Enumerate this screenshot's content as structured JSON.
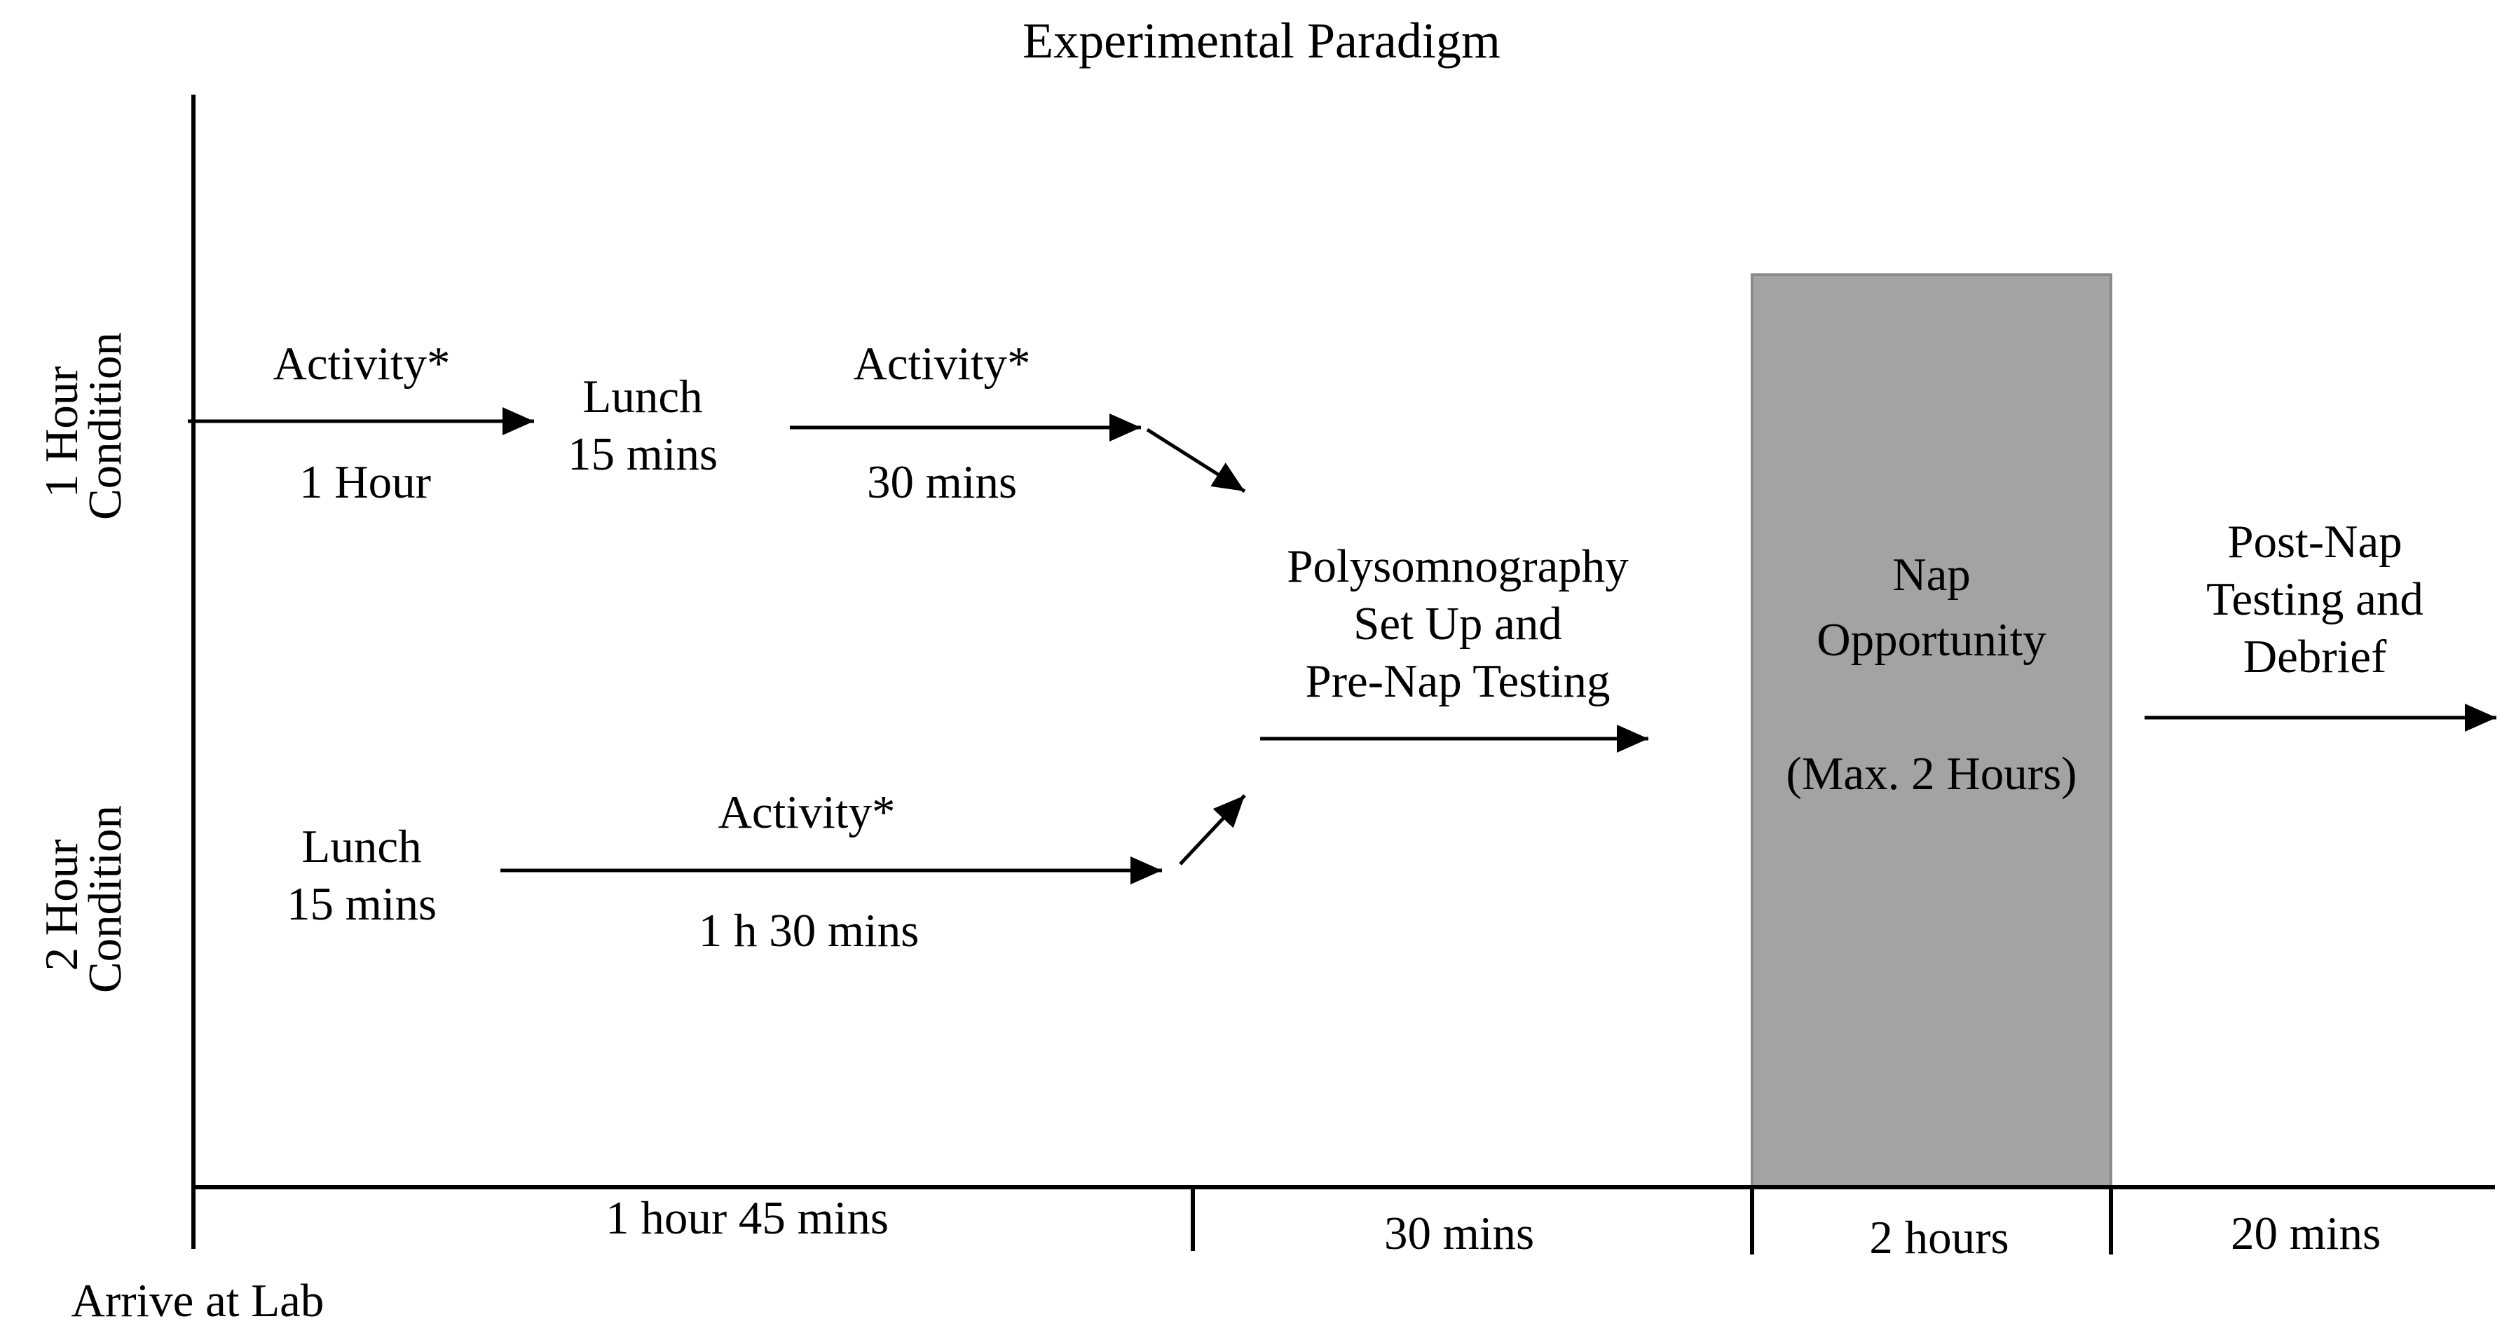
{
  "title": "Experimental Paradigm",
  "conditions": {
    "one_hour": "1 Hour\nCondition",
    "two_hour": "2 Hour\nCondition"
  },
  "one_hour_steps": {
    "activity1_label": "Activity*",
    "activity1_duration": "1 Hour",
    "lunch_label": "Lunch",
    "lunch_duration": "15 mins",
    "activity2_label": "Activity*",
    "activity2_duration": "30 mins"
  },
  "two_hour_steps": {
    "lunch_label": "Lunch",
    "lunch_duration": "15 mins",
    "activity_label": "Activity*",
    "activity_duration": "1 h 30 mins"
  },
  "polysomnography": {
    "line1": "Polysomnography",
    "line2": "Set Up and",
    "line3": "Pre-Nap Testing"
  },
  "nap": {
    "line1": "Nap",
    "line2": "Opportunity",
    "line3": "(Max. 2 Hours)",
    "fill_color": "#a3a3a3"
  },
  "post_nap": {
    "line1": "Post-Nap",
    "line2": "Testing and",
    "line3": "Debrief"
  },
  "timeline": {
    "segments": [
      "1 hour 45 mins",
      "30 mins",
      "2 hours",
      "20 mins"
    ],
    "start_label": "Arrive at Lab"
  }
}
